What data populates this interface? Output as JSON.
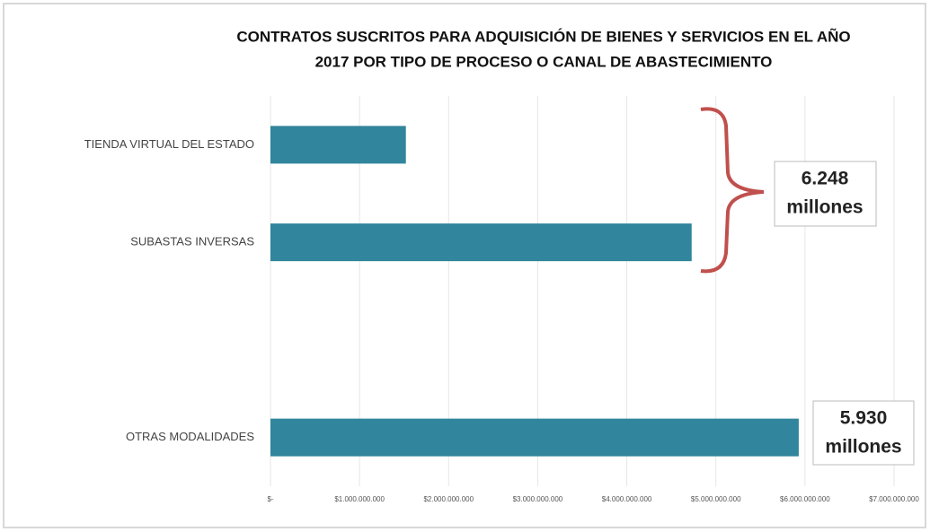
{
  "chart_data": {
    "type": "bar",
    "orientation": "horizontal",
    "title": [
      "CONTRATOS SUSCRITOS PARA ADQUISICIÓN DE BIENES Y SERVICIOS  EN EL AÑO",
      "2017 POR TIPO DE PROCESO O CANAL DE ABASTECIMIENTO"
    ],
    "categories": [
      "TIENDA VIRTUAL DEL ESTADO",
      "SUBASTAS INVERSAS",
      null,
      "OTRAS MODALIDADES"
    ],
    "values": [
      1520000000,
      4728000000,
      null,
      5930000000
    ],
    "color": "#31859c",
    "xlim": [
      0,
      7000000000
    ],
    "xticks": [
      {
        "value": 0,
        "label": "$-"
      },
      {
        "value": 1000000000,
        "label": "$1.000.000.000"
      },
      {
        "value": 2000000000,
        "label": "$2.000.000.000"
      },
      {
        "value": 3000000000,
        "label": "$3.000.000.000"
      },
      {
        "value": 4000000000,
        "label": "$4.000.000.000"
      },
      {
        "value": 5000000000,
        "label": "$5.000.000.000"
      },
      {
        "value": 6000000000,
        "label": "$6.000.000.000"
      },
      {
        "value": 7000000000,
        "label": "$7.000.000.000"
      }
    ],
    "grid": true,
    "annotations": [
      [
        "6.248",
        "millones"
      ],
      [
        "5.930",
        "millones"
      ]
    ]
  }
}
